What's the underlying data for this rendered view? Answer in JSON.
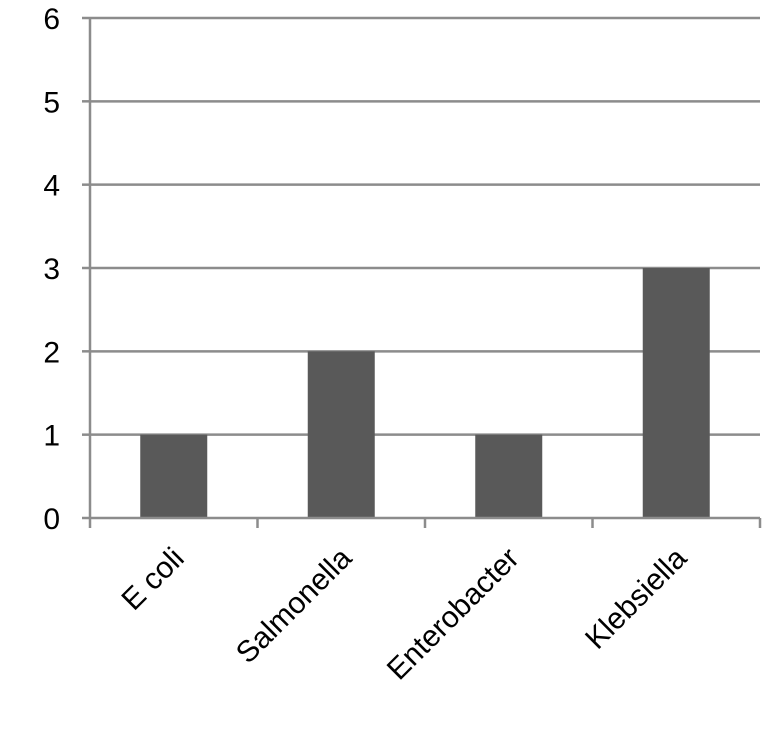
{
  "chart_data": {
    "type": "bar",
    "title": "",
    "xlabel": "",
    "ylabel": "",
    "categories": [
      "E coli",
      "Salmonella",
      "Enterobacter",
      "Klebsiella"
    ],
    "values": [
      1,
      2,
      1,
      3
    ],
    "ylim": [
      0,
      6
    ],
    "yticks": [
      "0",
      "1",
      "2",
      "3",
      "4",
      "5",
      "6"
    ],
    "grid": true,
    "legend": "none",
    "colors": {
      "bar": "#595959",
      "gridline": "#8c8c8c",
      "axis": "#8c8c8c"
    }
  }
}
